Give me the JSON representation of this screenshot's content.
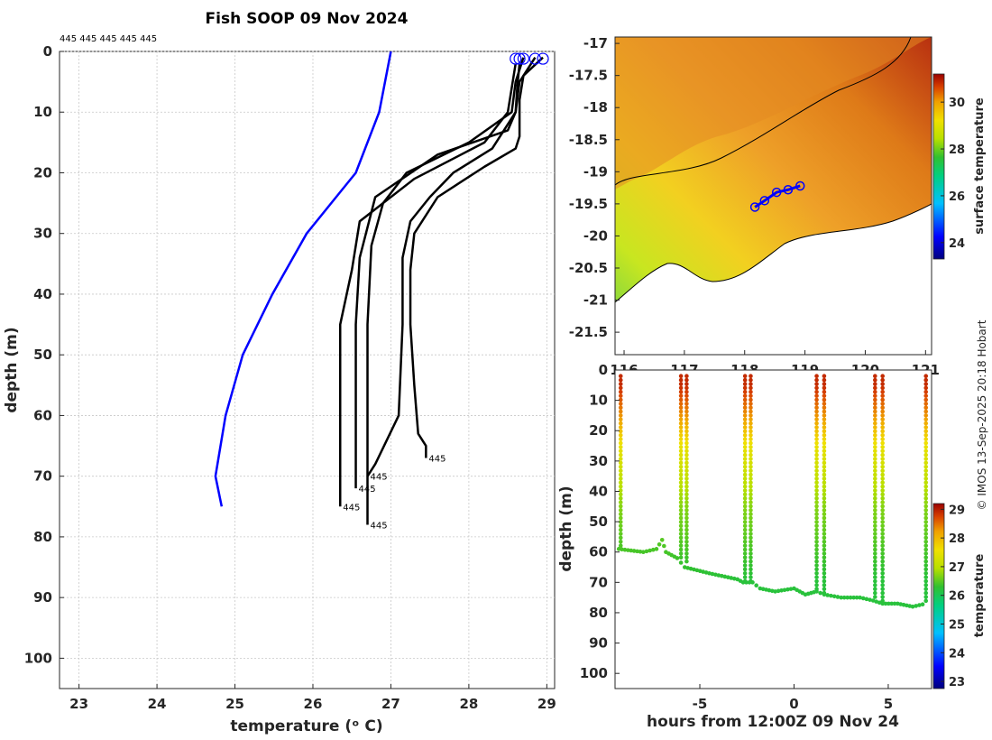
{
  "figure_title": "Fish SOOP 09 Nov 2024",
  "station_labels_top": "445 445 445 445 445",
  "credit": "© IMOS 13-Sep-2025 20:18 Hobart",
  "chart_data": [
    {
      "type": "line",
      "name": "profiles",
      "title": "Fish SOOP 09 Nov 2024",
      "xlabel": "temperature (ᵒ C)",
      "ylabel": "depth (m)",
      "xlim": [
        22.75,
        29.1
      ],
      "ylim": [
        0,
        105
      ],
      "y_reversed": true,
      "xticks": [
        23,
        24,
        25,
        26,
        27,
        28,
        29
      ],
      "yticks": [
        0,
        10,
        20,
        30,
        40,
        50,
        60,
        70,
        80,
        90,
        100
      ],
      "grid": true,
      "climatology": {
        "name": "climatology",
        "color": "#0000ff",
        "temperature": [
          27.0,
          26.85,
          26.55,
          25.92,
          25.48,
          25.1,
          24.88,
          24.75,
          24.83
        ],
        "depth": [
          0,
          10,
          20,
          30,
          40,
          50,
          60,
          70,
          75
        ]
      },
      "profiles": [
        {
          "label": "445",
          "temperature": [
            28.95,
            28.7,
            28.65,
            28.65,
            28.6,
            28.2,
            27.6,
            27.3,
            27.25,
            27.25,
            27.3,
            27.35,
            27.45,
            27.45
          ],
          "depth": [
            1,
            4,
            8,
            14,
            16,
            19,
            24,
            30,
            36,
            45,
            55,
            63,
            65,
            67
          ]
        },
        {
          "label": "445",
          "temperature": [
            28.85,
            28.65,
            28.6,
            28.3,
            27.8,
            27.5,
            27.25,
            27.15,
            27.15,
            27.1,
            26.8,
            26.7
          ],
          "depth": [
            1,
            5,
            10,
            16,
            20,
            24,
            28,
            34,
            45,
            60,
            68,
            70
          ]
        },
        {
          "label": "445",
          "temperature": [
            28.7,
            28.6,
            28.55,
            28.0,
            27.2,
            26.9,
            26.75,
            26.7,
            26.7
          ],
          "depth": [
            1,
            5,
            10,
            15,
            20,
            25,
            32,
            45,
            78
          ]
        },
        {
          "label": "445",
          "temperature": [
            28.65,
            28.62,
            28.6,
            28.5,
            27.6,
            26.8,
            26.6,
            26.55,
            26.55
          ],
          "depth": [
            2,
            6,
            10,
            13,
            17,
            24,
            34,
            45,
            72
          ]
        },
        {
          "label": "445",
          "temperature": [
            28.6,
            28.55,
            28.5,
            28.2,
            27.3,
            26.6,
            26.5,
            26.35,
            26.35
          ],
          "depth": [
            2,
            6,
            10,
            15,
            21,
            28,
            36,
            45,
            75
          ]
        }
      ]
    },
    {
      "type": "heatmap",
      "name": "surface-temperature-map",
      "xticks": [
        116,
        117,
        118,
        119,
        120,
        121
      ],
      "yticks": [
        -17,
        -17.5,
        -18,
        -18.5,
        -19,
        -19.5,
        -20,
        -20.5,
        -21,
        -21.5
      ],
      "xlim": [
        115.85,
        121.1
      ],
      "ylim": [
        -21.85,
        -16.9
      ],
      "track_points": [
        [
          118.17,
          -19.55
        ],
        [
          118.33,
          -19.45
        ],
        [
          118.53,
          -19.32
        ],
        [
          118.72,
          -19.28
        ],
        [
          118.92,
          -19.22
        ]
      ],
      "colorbar": {
        "label": "surface temperature",
        "ticks": [
          24,
          26,
          28,
          30
        ],
        "range": [
          23.3,
          31.2
        ]
      }
    },
    {
      "type": "scatter",
      "name": "depth-time-section",
      "xlabel": "hours from 12:00Z 09 Nov 24",
      "ylabel": "depth (m)",
      "xticks": [
        -5,
        0,
        5
      ],
      "yticks": [
        0,
        10,
        20,
        30,
        40,
        50,
        60,
        70,
        80,
        90,
        100
      ],
      "xlim": [
        -9.5,
        7.3
      ],
      "ylim": [
        0,
        105
      ],
      "bottom_trace": {
        "hours": [
          -9.3,
          -8.0,
          -7.3,
          -7.0,
          -6.8,
          -6.2,
          -5.8,
          -4.5,
          -3.0,
          -2.7,
          -2.2,
          -1.8,
          -1.0,
          0.0,
          0.6,
          1.2,
          1.6,
          2.5,
          3.5,
          4.2,
          4.7,
          5.5,
          6.3,
          7.0
        ],
        "depth": [
          59,
          60,
          59,
          56,
          60,
          62,
          65,
          67,
          69,
          70,
          70,
          72,
          73,
          72,
          74,
          73,
          74,
          75,
          75,
          76,
          77,
          77,
          78,
          77
        ]
      },
      "casts": [
        {
          "hour": -9.2,
          "bottom": 59
        },
        {
          "hour": -6.0,
          "bottom": 62
        },
        {
          "hour": -5.7,
          "bottom": 64
        },
        {
          "hour": -2.6,
          "bottom": 70
        },
        {
          "hour": -2.3,
          "bottom": 70
        },
        {
          "hour": 1.2,
          "bottom": 73
        },
        {
          "hour": 1.6,
          "bottom": 74
        },
        {
          "hour": 4.3,
          "bottom": 76
        },
        {
          "hour": 4.7,
          "bottom": 77
        },
        {
          "hour": 7.0,
          "bottom": 77
        }
      ],
      "colorbar": {
        "label": "temperature",
        "ticks": [
          23,
          24,
          25,
          26,
          27,
          28,
          29
        ],
        "range": [
          22.75,
          29.2
        ]
      }
    }
  ]
}
